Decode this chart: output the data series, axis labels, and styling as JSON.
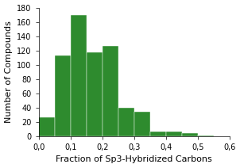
{
  "bin_left_edges": [
    0.025,
    0.075,
    0.125,
    0.175,
    0.225,
    0.275,
    0.325,
    0.375,
    0.425,
    0.475,
    0.525
  ],
  "counts": [
    27,
    113,
    170,
    117,
    126,
    40,
    34,
    7,
    6,
    4,
    1
  ],
  "bar_color": "#2e8b2e",
  "bar_edge_color": "#2e8b2e",
  "xlabel": "Fraction of Sp3-Hybridized Carbons",
  "ylabel": "Number of Compounds",
  "xlim": [
    0.0,
    0.6
  ],
  "ylim": [
    0,
    180
  ],
  "yticks": [
    0,
    20,
    40,
    60,
    80,
    100,
    120,
    140,
    160,
    180
  ],
  "xticks": [
    0.0,
    0.1,
    0.2,
    0.3,
    0.4,
    0.5,
    0.6
  ],
  "tick_label_size": 7,
  "axis_label_size": 8,
  "bar_width": 0.05,
  "background_color": "#ffffff"
}
